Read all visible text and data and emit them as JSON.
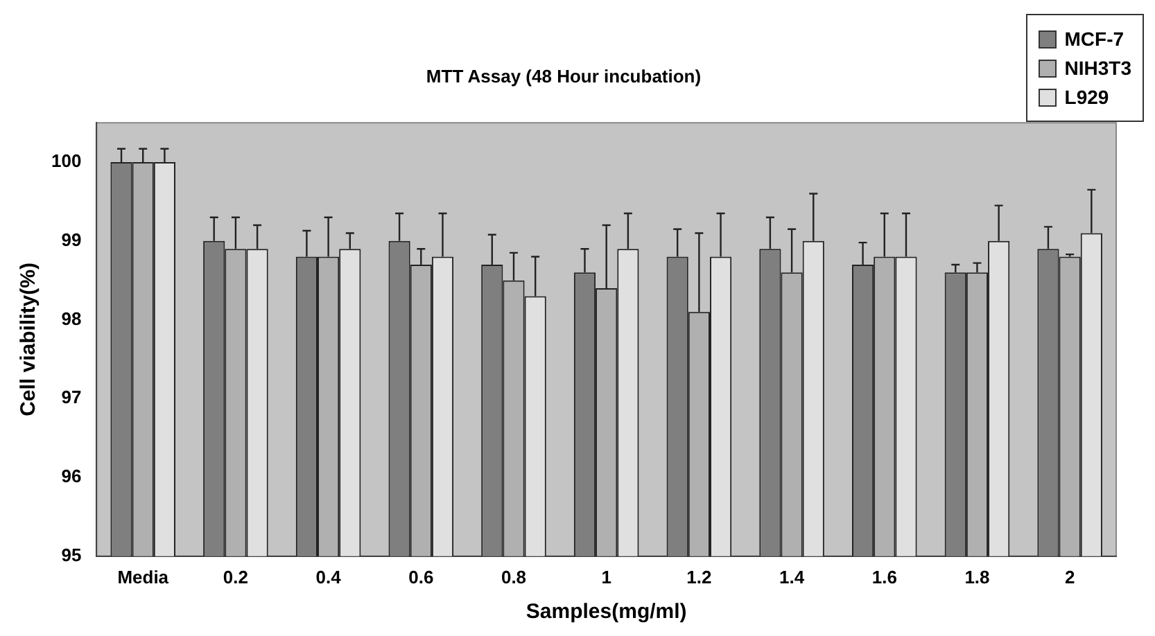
{
  "chart_data": {
    "type": "bar",
    "title": "MTT Assay (48 Hour incubation)",
    "xlabel": "Samples(mg/ml)",
    "ylabel": "Cell viability(%)",
    "categories": [
      "Media",
      "0.2",
      "0.4",
      "0.6",
      "0.8",
      "1",
      "1.2",
      "1.4",
      "1.6",
      "1.8",
      "2"
    ],
    "series": [
      {
        "name": "MCF-7",
        "color": "#7f7f7f",
        "values": [
          100,
          99.0,
          98.8,
          99.0,
          98.7,
          98.6,
          98.8,
          98.9,
          98.7,
          98.6,
          98.9
        ],
        "errors": [
          0.17,
          0.3,
          0.33,
          0.35,
          0.38,
          0.3,
          0.35,
          0.4,
          0.28,
          0.1,
          0.28
        ]
      },
      {
        "name": "NIH3T3",
        "color": "#b0b0b0",
        "values": [
          100,
          98.9,
          98.8,
          98.7,
          98.5,
          98.4,
          98.1,
          98.6,
          98.8,
          98.6,
          98.8
        ],
        "errors": [
          0.17,
          0.4,
          0.5,
          0.2,
          0.35,
          0.8,
          1.0,
          0.55,
          0.55,
          0.12,
          0.03
        ]
      },
      {
        "name": "L929",
        "color": "#e0e0e0",
        "values": [
          100,
          98.9,
          98.9,
          98.8,
          98.3,
          98.9,
          98.8,
          99.0,
          98.8,
          99.0,
          99.1
        ],
        "errors": [
          0.17,
          0.3,
          0.2,
          0.55,
          0.5,
          0.45,
          0.55,
          0.6,
          0.55,
          0.45,
          0.55
        ]
      }
    ],
    "ylim": [
      95,
      100.5
    ],
    "yticks": [
      95,
      96,
      97,
      98,
      99,
      100
    ],
    "grid": false,
    "legend": "top right"
  }
}
